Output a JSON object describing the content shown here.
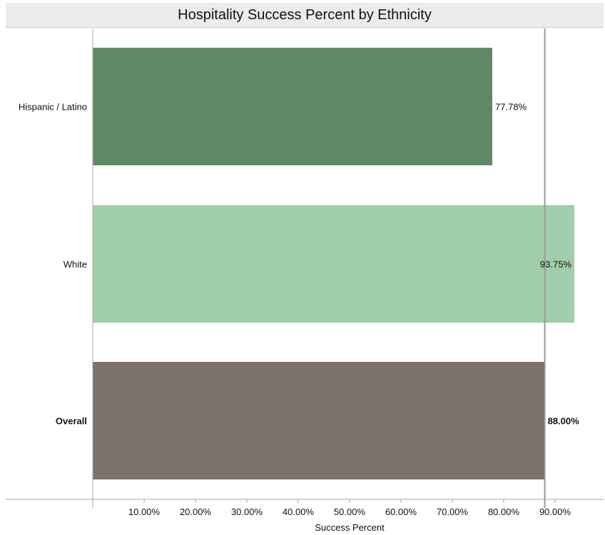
{
  "colors": {
    "hispanic": "#5f8965",
    "white": "#a0ceaa",
    "overall": "#7a7369",
    "axis": "#a9a9a9",
    "reference_line": "#9a9a9a",
    "text": "#111111"
  },
  "chart_data": {
    "type": "bar",
    "orientation": "horizontal",
    "title": "Hospitality Success Percent by Ethnicity",
    "xlabel": "Success Percent",
    "ylabel": "",
    "xlim": [
      0,
      95
    ],
    "x_ticks": [
      10,
      20,
      30,
      40,
      50,
      60,
      70,
      80,
      90
    ],
    "x_tick_labels": [
      "10.00%",
      "20.00%",
      "30.00%",
      "40.00%",
      "50.00%",
      "60.00%",
      "70.00%",
      "80.00%",
      "90.00%"
    ],
    "categories": [
      "Hispanic / Latino",
      "White",
      "Overall"
    ],
    "values": [
      77.78,
      93.75,
      88.0
    ],
    "value_labels": [
      "77.78%",
      "93.75%",
      "88.00%"
    ],
    "bold_categories": [
      "Overall"
    ],
    "reference_line": {
      "value": 88.0
    },
    "grid": false
  }
}
